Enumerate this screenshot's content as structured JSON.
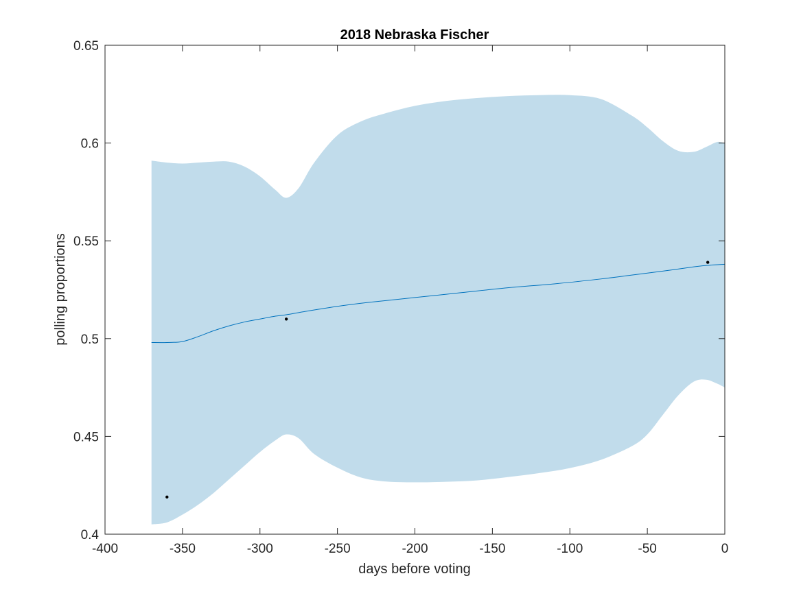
{
  "chart_data": {
    "type": "line",
    "title": "2018 Nebraska Fischer",
    "xlabel": "days before voting",
    "ylabel": "polling proportions",
    "xlim": [
      -400,
      0
    ],
    "ylim": [
      0.4,
      0.65
    ],
    "x_ticks": [
      -400,
      -350,
      -300,
      -250,
      -200,
      -150,
      -100,
      -50,
      0
    ],
    "x_tick_labels": [
      "-400",
      "-350",
      "-300",
      "-250",
      "-200",
      "-150",
      "-100",
      "-50",
      "0"
    ],
    "y_ticks": [
      0.4,
      0.45,
      0.5,
      0.55,
      0.6,
      0.65
    ],
    "y_tick_labels": [
      "0.4",
      "0.45",
      "0.5",
      "0.55",
      "0.6",
      "0.65"
    ],
    "grid": false,
    "legend": "none",
    "colors": {
      "band": "#c1dceb",
      "line": "#0072bd",
      "points": "#000000",
      "axes": "#262626"
    },
    "series": [
      {
        "kind": "band",
        "x": [
          -370,
          -360,
          -350,
          -340,
          -330,
          -320,
          -310,
          -300,
          -290,
          -283,
          -275,
          -265,
          -250,
          -235,
          -220,
          -200,
          -180,
          -160,
          -140,
          -120,
          -100,
          -80,
          -60,
          -50,
          -40,
          -30,
          -20,
          -12,
          -5,
          0
        ],
        "upper": [
          0.591,
          0.59,
          0.5895,
          0.59,
          0.5905,
          0.5905,
          0.588,
          0.583,
          0.576,
          0.572,
          0.577,
          0.59,
          0.604,
          0.611,
          0.615,
          0.619,
          0.6215,
          0.623,
          0.624,
          0.6245,
          0.6245,
          0.6225,
          0.614,
          0.608,
          0.601,
          0.596,
          0.5955,
          0.598,
          0.6005,
          0.6
        ],
        "lower": [
          0.405,
          0.406,
          0.41,
          0.415,
          0.421,
          0.428,
          0.435,
          0.442,
          0.448,
          0.451,
          0.449,
          0.441,
          0.434,
          0.429,
          0.427,
          0.4265,
          0.4268,
          0.4275,
          0.4292,
          0.4312,
          0.4338,
          0.438,
          0.445,
          0.451,
          0.461,
          0.471,
          0.478,
          0.479,
          0.477,
          0.475
        ]
      },
      {
        "kind": "line",
        "x": [
          -370,
          -360,
          -350,
          -340,
          -330,
          -320,
          -310,
          -300,
          -290,
          -283,
          -270,
          -250,
          -230,
          -200,
          -170,
          -140,
          -110,
          -80,
          -60,
          -40,
          -20,
          -10,
          0
        ],
        "y": [
          0.498,
          0.498,
          0.4985,
          0.501,
          0.504,
          0.5065,
          0.5085,
          0.51,
          0.5115,
          0.5122,
          0.514,
          0.5165,
          0.5185,
          0.521,
          0.5235,
          0.526,
          0.528,
          0.5305,
          0.5325,
          0.5345,
          0.5367,
          0.5375,
          0.538
        ]
      },
      {
        "kind": "points",
        "x": [
          -360,
          -283,
          -11
        ],
        "y": [
          0.419,
          0.51,
          0.539
        ]
      }
    ]
  }
}
